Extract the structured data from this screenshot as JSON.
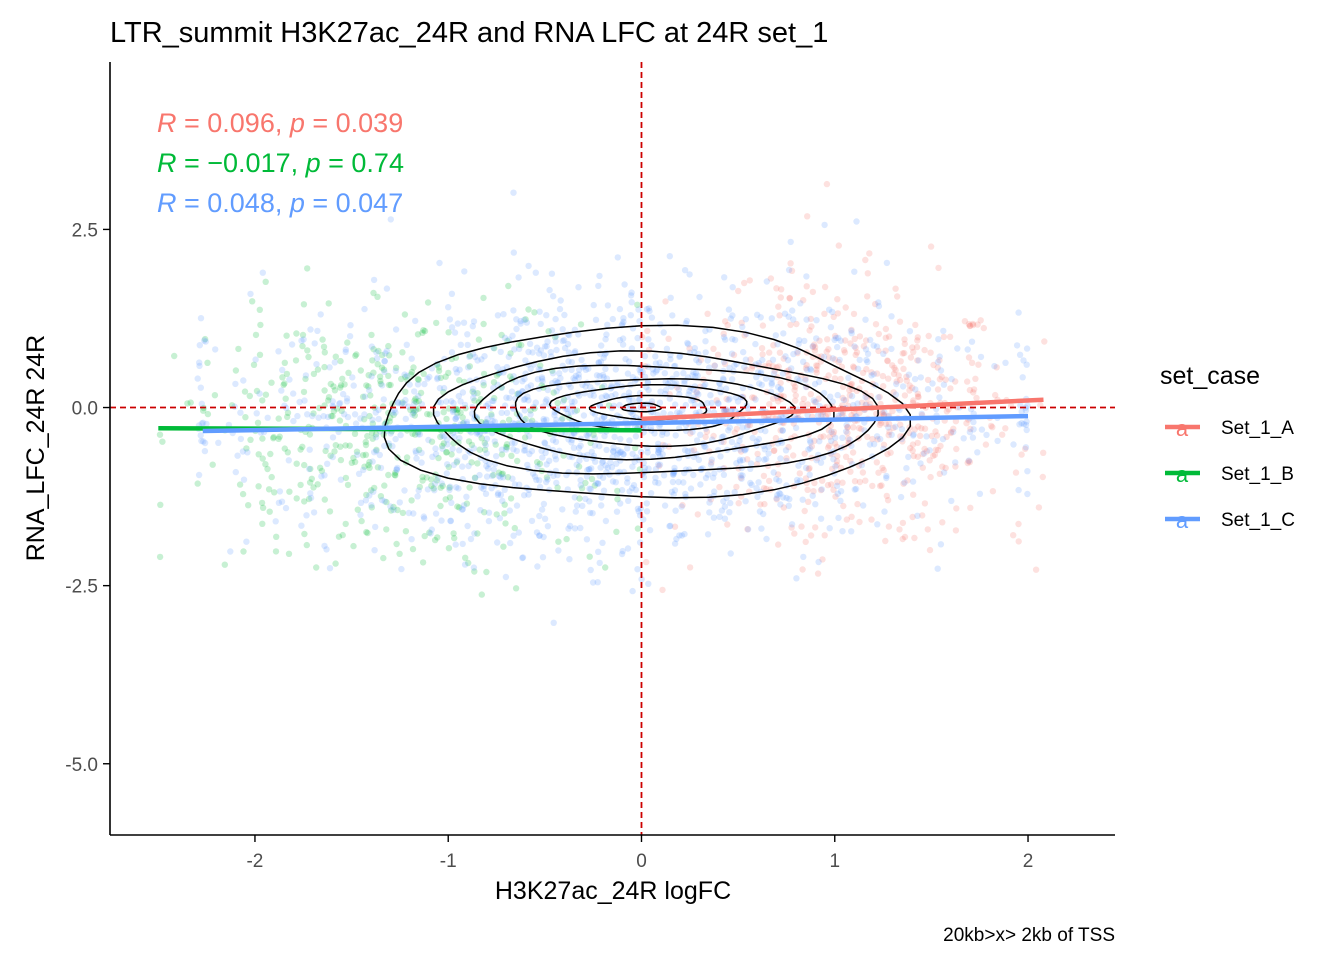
{
  "chart_data": {
    "type": "scatter",
    "title": "LTR_summit H3K27ac_24R and RNA LFC at 24R set_1",
    "xlabel": "H3K27ac_24R logFC",
    "ylabel": "RNA_LFC_24R 24R",
    "caption": "20kb>x> 2kb of TSS",
    "xlim": [
      -2.75,
      2.45
    ],
    "ylim": [
      -6.0,
      4.85
    ],
    "x_ticks": [
      -2,
      -1,
      0,
      1,
      2
    ],
    "x_tick_labels": [
      "-2",
      "-1",
      "0",
      "1",
      "2"
    ],
    "y_ticks": [
      2.5,
      0.0,
      -2.5,
      -5.0
    ],
    "y_tick_labels": [
      "2.5",
      "0.0",
      "-2.5",
      "-5.0"
    ],
    "reference_lines": {
      "x": 0,
      "y": 0,
      "color": "#cc0000",
      "style": "dashed"
    },
    "legend": {
      "title": "set_case",
      "position": "right",
      "key_glyph": "a"
    },
    "series": [
      {
        "name": "Set_1_A",
        "color": "#f8766d",
        "x_range": [
          0.0,
          2.1
        ],
        "y_center": -0.1,
        "approx_points": 600,
        "regression": {
          "x": [
            0.0,
            2.08
          ],
          "y": [
            -0.16,
            0.11
          ]
        },
        "stats": {
          "R": "0.096",
          "p": "0.039"
        }
      },
      {
        "name": "Set_1_B",
        "color": "#00ba38",
        "x_range": [
          -2.5,
          0.0
        ],
        "y_center": -0.4,
        "approx_points": 480,
        "regression": {
          "x": [
            -2.5,
            0.0
          ],
          "y": [
            -0.29,
            -0.32
          ]
        },
        "stats": {
          "R": "−0.017",
          "p": "0.74"
        }
      },
      {
        "name": "Set_1_C",
        "color": "#619cff",
        "x_range": [
          -2.3,
          2.0
        ],
        "y_center": -0.2,
        "approx_points": 1600,
        "regression": {
          "x": [
            -2.27,
            2.0
          ],
          "y": [
            -0.33,
            -0.12
          ]
        },
        "stats": {
          "R": "0.048",
          "p": "0.047"
        }
      }
    ],
    "density_contours": {
      "color": "#000000",
      "levels": [
        {
          "cx": 0.0,
          "cy": -0.1,
          "rx": 1.35,
          "ry": 1.2
        },
        {
          "cx": 0.05,
          "cy": -0.1,
          "rx": 1.15,
          "ry": 0.85
        },
        {
          "cx": 0.05,
          "cy": -0.05,
          "rx": 0.93,
          "ry": 0.65
        },
        {
          "cx": 0.05,
          "cy": -0.05,
          "rx": 0.72,
          "ry": 0.47
        },
        {
          "cx": 0.05,
          "cy": 0.0,
          "rx": 0.5,
          "ry": 0.32
        },
        {
          "cx": 0.05,
          "cy": 0.0,
          "rx": 0.3,
          "ry": 0.17
        },
        {
          "cx": 0.0,
          "cy": 0.0,
          "rx": 0.1,
          "ry": 0.06
        }
      ]
    }
  }
}
